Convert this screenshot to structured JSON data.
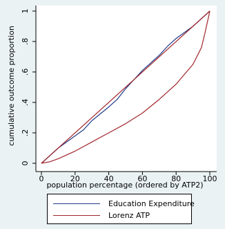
{
  "chart_data": {
    "type": "line",
    "title": "",
    "xlabel": "population percentage (ordered by ATP2)",
    "ylabel": "cumulative outcome proportion",
    "xlim": [
      0,
      100
    ],
    "ylim": [
      0,
      1
    ],
    "xticks": [
      0,
      20,
      40,
      60,
      80,
      100
    ],
    "xtick_labels": [
      "0",
      "20",
      "40",
      "60",
      "80",
      "100"
    ],
    "yticks": [
      0,
      0.2,
      0.4,
      0.6,
      0.8,
      1
    ],
    "ytick_labels": [
      "0",
      ".2",
      ".4",
      ".6",
      ".8",
      "1"
    ],
    "grid": false,
    "legend_position": "bottom",
    "series": [
      {
        "name": "Education Expenditure",
        "color": "#1f3a8a",
        "x": [
          0,
          10,
          20,
          25,
          30,
          40,
          45,
          50,
          55,
          60,
          65,
          70,
          75,
          80,
          90,
          100
        ],
        "y": [
          0,
          0.1,
          0.18,
          0.22,
          0.28,
          0.37,
          0.42,
          0.49,
          0.55,
          0.61,
          0.66,
          0.71,
          0.77,
          0.82,
          0.9,
          1
        ]
      },
      {
        "name": "Lorenz ATP",
        "color": "#a0252a",
        "x": [
          0,
          5,
          10,
          20,
          30,
          40,
          50,
          60,
          70,
          80,
          90,
          95,
          97,
          100
        ],
        "y": [
          0,
          0.01,
          0.03,
          0.08,
          0.14,
          0.2,
          0.26,
          0.33,
          0.42,
          0.52,
          0.65,
          0.76,
          0.85,
          1
        ]
      },
      {
        "name": "",
        "color": "#a0252a",
        "x": [
          0,
          100
        ],
        "y": [
          0,
          1
        ]
      }
    ]
  }
}
